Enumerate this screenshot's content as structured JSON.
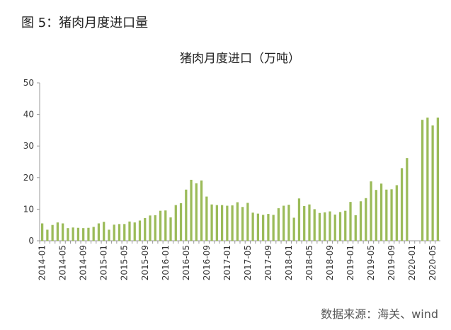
{
  "figure_caption": "图 5：猪肉月度进口量",
  "source_note": "数据来源：海关、wind",
  "chart_data": {
    "type": "bar",
    "title": "猪肉月度进口（万吨）",
    "xlabel": "",
    "ylabel": "",
    "ylim": [
      0,
      50
    ],
    "yticks": [
      "0",
      "10",
      "20",
      "30",
      "40",
      "50"
    ],
    "grid": false,
    "legend": "none",
    "bar_color": "#9bbb59",
    "x_tick_labels": [
      "2014-01",
      "2014-05",
      "2014-09",
      "2015-01",
      "2015-05",
      "2015-09",
      "2016-01",
      "2016-05",
      "2016-09",
      "2017-01",
      "2017-05",
      "2017-09",
      "2018-01",
      "2018-05",
      "2018-09",
      "2019-01",
      "2019-05",
      "2019-09",
      "2020-01",
      "2020-05"
    ],
    "categories": [
      "2014-01",
      "2014-02",
      "2014-03",
      "2014-04",
      "2014-05",
      "2014-06",
      "2014-07",
      "2014-08",
      "2014-09",
      "2014-10",
      "2014-11",
      "2014-12",
      "2015-01",
      "2015-02",
      "2015-03",
      "2015-04",
      "2015-05",
      "2015-06",
      "2015-07",
      "2015-08",
      "2015-09",
      "2015-10",
      "2015-11",
      "2015-12",
      "2016-01",
      "2016-02",
      "2016-03",
      "2016-04",
      "2016-05",
      "2016-06",
      "2016-07",
      "2016-08",
      "2016-09",
      "2016-10",
      "2016-11",
      "2016-12",
      "2017-01",
      "2017-02",
      "2017-03",
      "2017-04",
      "2017-05",
      "2017-06",
      "2017-07",
      "2017-08",
      "2017-09",
      "2017-10",
      "2017-11",
      "2017-12",
      "2018-01",
      "2018-02",
      "2018-03",
      "2018-04",
      "2018-05",
      "2018-06",
      "2018-07",
      "2018-08",
      "2018-09",
      "2018-10",
      "2018-11",
      "2018-12",
      "2019-01",
      "2019-02",
      "2019-03",
      "2019-04",
      "2019-05",
      "2019-06",
      "2019-07",
      "2019-08",
      "2019-09",
      "2019-10",
      "2019-11",
      "2019-12",
      "2020-01",
      "2020-02",
      "2020-03",
      "2020-04",
      "2020-05",
      "2020-06"
    ],
    "values": [
      5.5,
      3.5,
      5.0,
      5.8,
      5.5,
      4.0,
      4.2,
      4.1,
      4.0,
      4.1,
      4.4,
      5.5,
      6.0,
      3.5,
      5.1,
      5.3,
      5.3,
      6.1,
      5.8,
      6.4,
      7.2,
      8.0,
      8.1,
      9.5,
      9.6,
      7.4,
      11.3,
      11.9,
      16.2,
      19.3,
      18.2,
      19.1,
      14.0,
      11.5,
      11.3,
      11.3,
      11.1,
      11.2,
      12.2,
      10.7,
      12.0,
      8.9,
      8.6,
      8.2,
      8.5,
      8.2,
      10.3,
      11.1,
      11.4,
      7.3,
      13.4,
      11.0,
      11.5,
      10.0,
      8.8,
      9.0,
      9.3,
      8.3,
      9.1,
      9.5,
      12.3,
      8.1,
      12.5,
      13.5,
      18.8,
      16.1,
      18.1,
      16.2,
      16.3,
      17.6,
      23.0,
      26.2,
      null,
      null,
      38.3,
      39.0,
      36.5,
      39.0
    ]
  }
}
